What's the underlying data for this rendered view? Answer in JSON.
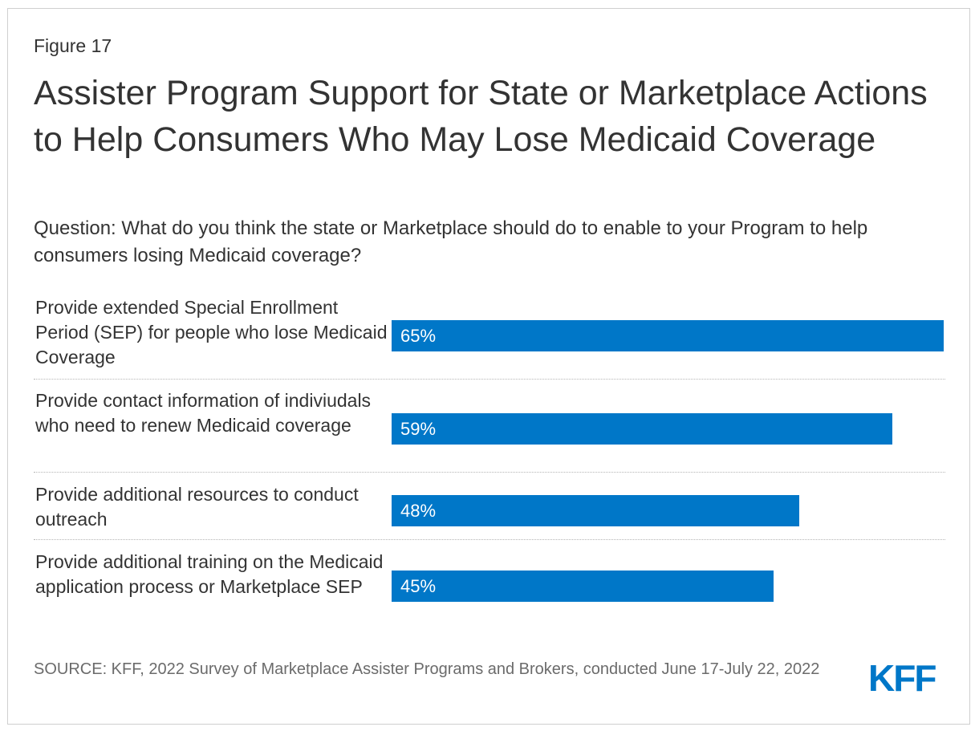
{
  "figure_label": "Figure 17",
  "title": "Assister Program Support for State or Marketplace Actions to Help Consumers Who May Lose Medicaid Coverage",
  "subtitle": "Question: What do you think the state or Marketplace should do to enable to your Program to help consumers losing Medicaid coverage?",
  "source": "SOURCE: KFF, 2022 Survey of Marketplace Assister Programs and Brokers, conducted June 17-July 22, 2022",
  "logo_text": "KFF",
  "colors": {
    "bar": "#0077c8",
    "text": "#333333",
    "source": "#6b6b6b"
  },
  "chart_data": {
    "type": "bar",
    "orientation": "horizontal",
    "categories": [
      "Provide extended Special Enrollment Period (SEP) for people who lose Medicaid Coverage",
      "Provide contact information of indiviudals who need to renew Medicaid coverage",
      "Provide additional resources to conduct outreach",
      "Provide additional training on the Medicaid application process or Marketplace SEP"
    ],
    "values": [
      65,
      59,
      48,
      45
    ],
    "value_labels": [
      "65%",
      "59%",
      "48%",
      "45%"
    ],
    "xlim": [
      0,
      65
    ],
    "grid": false,
    "legend": "none"
  }
}
